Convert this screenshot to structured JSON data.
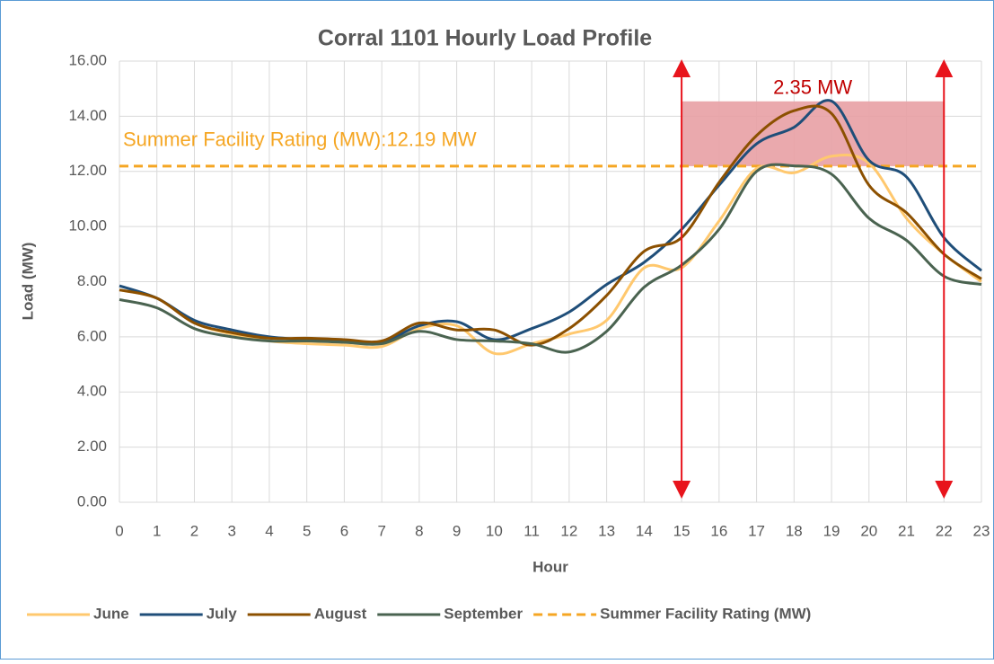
{
  "chart_data": {
    "type": "line",
    "title": "Corral 1101 Hourly Load Profile",
    "x_label": "Hour",
    "y_label": "Load (MW)",
    "x": [
      0,
      1,
      2,
      3,
      4,
      5,
      6,
      7,
      8,
      9,
      10,
      11,
      12,
      13,
      14,
      15,
      16,
      17,
      18,
      19,
      20,
      21,
      22,
      23
    ],
    "xlim": [
      0,
      23
    ],
    "xticks": [
      0,
      1,
      2,
      3,
      4,
      5,
      6,
      7,
      8,
      9,
      10,
      11,
      12,
      13,
      14,
      15,
      16,
      17,
      18,
      19,
      20,
      21,
      22,
      23
    ],
    "ylim": [
      0,
      16
    ],
    "yticks": [
      {
        "value": 0,
        "label": "0.00"
      },
      {
        "value": 2,
        "label": "2.00"
      },
      {
        "value": 4,
        "label": "4.00"
      },
      {
        "value": 6,
        "label": "6.00"
      },
      {
        "value": 8,
        "label": "8.00"
      },
      {
        "value": 10,
        "label": "10.00"
      },
      {
        "value": 12,
        "label": "12.00"
      },
      {
        "value": 14,
        "label": "14.00"
      },
      {
        "value": 16,
        "label": "16.00"
      }
    ],
    "grid": true,
    "legend": "bottom",
    "series": [
      {
        "name": "June",
        "color": "#ffc86e",
        "values": [
          7.7,
          7.4,
          6.5,
          6.1,
          5.85,
          5.75,
          5.7,
          5.65,
          6.3,
          6.4,
          5.4,
          5.75,
          6.1,
          6.6,
          8.5,
          8.5,
          10.2,
          12.1,
          11.95,
          12.55,
          12.3,
          10.3,
          9.0,
          8.0
        ]
      },
      {
        "name": "July",
        "color": "#1f4e79",
        "values": [
          7.85,
          7.4,
          6.6,
          6.25,
          6.0,
          5.9,
          5.85,
          5.8,
          6.4,
          6.55,
          5.9,
          6.3,
          6.9,
          7.9,
          8.7,
          9.9,
          11.5,
          13.0,
          13.6,
          14.55,
          12.4,
          11.8,
          9.6,
          8.4
        ]
      },
      {
        "name": "August",
        "color": "#8c5000",
        "values": [
          7.7,
          7.4,
          6.5,
          6.15,
          5.95,
          5.95,
          5.9,
          5.85,
          6.5,
          6.25,
          6.25,
          5.7,
          6.3,
          7.5,
          9.1,
          9.6,
          11.6,
          13.3,
          14.2,
          14.1,
          11.5,
          10.5,
          9.0,
          8.1
        ]
      },
      {
        "name": "September",
        "color": "#4a6350",
        "values": [
          7.35,
          7.05,
          6.3,
          6.0,
          5.85,
          5.85,
          5.8,
          5.75,
          6.2,
          5.9,
          5.85,
          5.75,
          5.45,
          6.2,
          7.8,
          8.6,
          9.9,
          12.0,
          12.2,
          11.9,
          10.3,
          9.5,
          8.2,
          7.9
        ]
      }
    ],
    "reference_line": {
      "name": "Summer Facility Rating (MW)",
      "value": 12.19,
      "color": "#f5a623",
      "label": "Summer Facility Rating (MW):12.19 MW"
    },
    "exceedance": {
      "label": "2.35 MW",
      "value": 2.35,
      "x": [
        15,
        22
      ],
      "color": "#e8a0a4",
      "arrow_color": "#e8141c"
    }
  }
}
